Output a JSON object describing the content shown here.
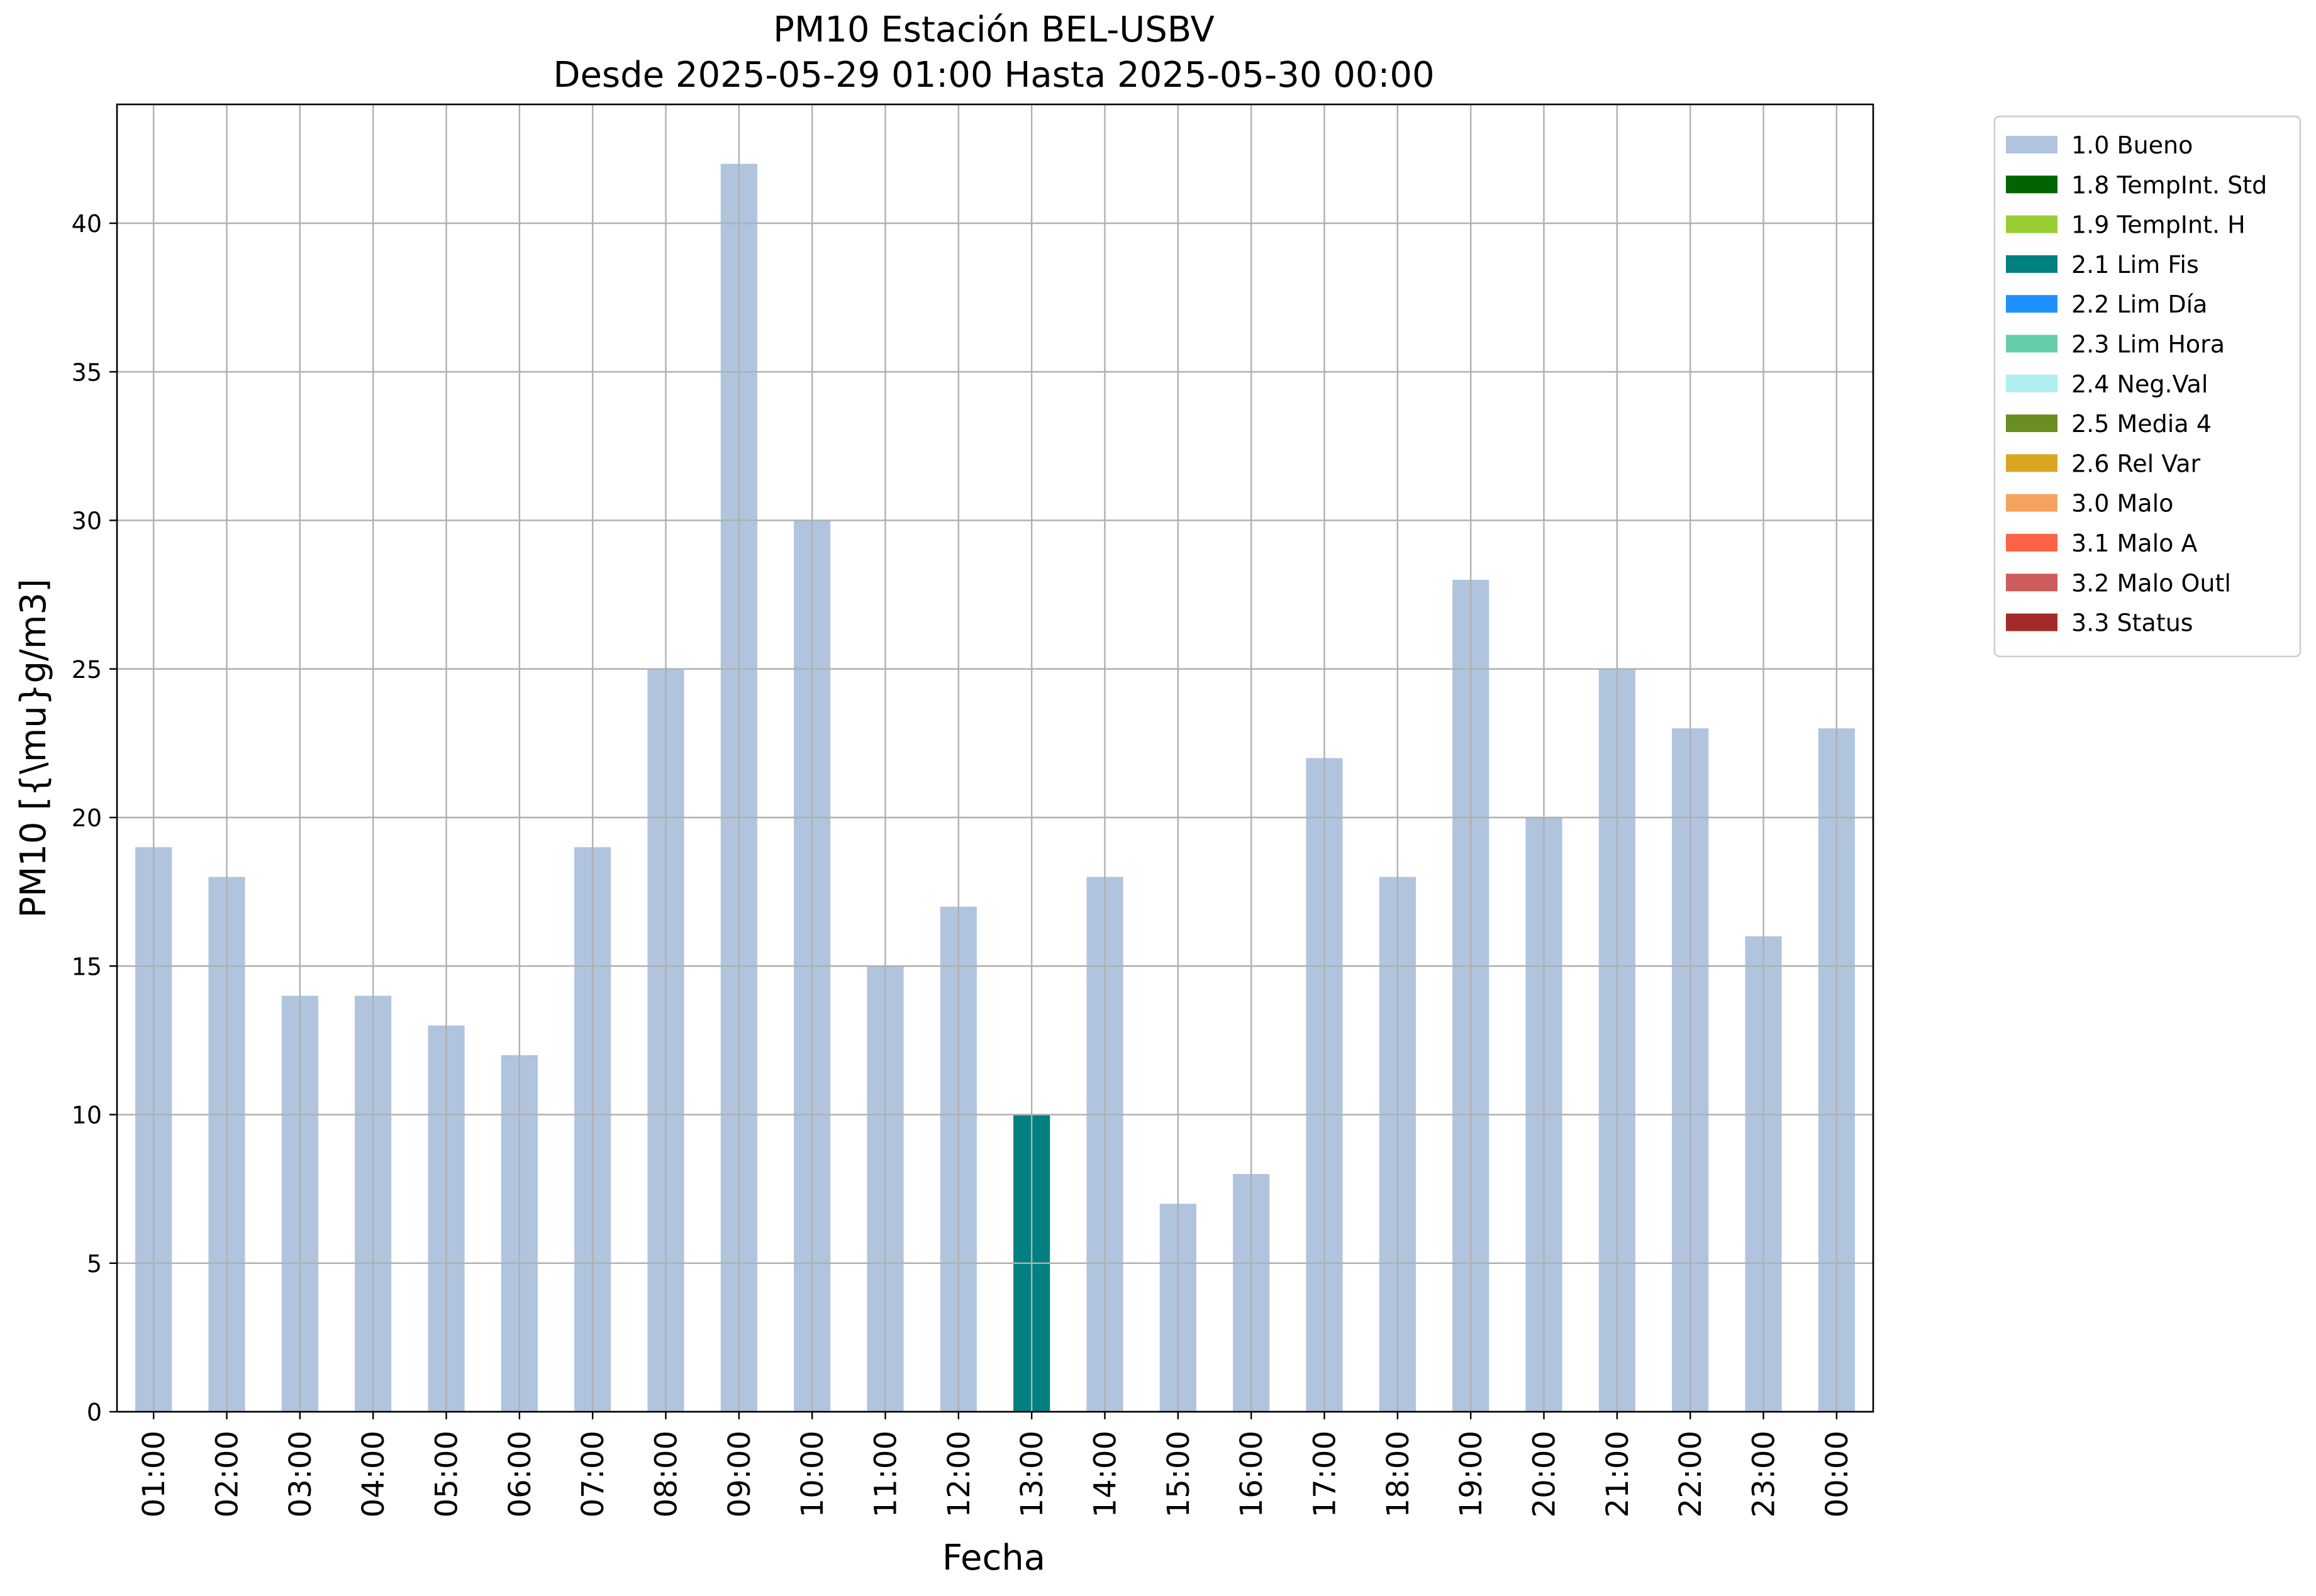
{
  "chart_data": {
    "type": "bar",
    "title": "PM10 Estación BEL-USBV",
    "subtitle": "Desde 2025-05-29 01:00 Hasta 2025-05-30 00:00",
    "xlabel": "Fecha",
    "ylabel": "PM10 [{\\mu}g/m3]",
    "ylim": [
      0,
      44
    ],
    "yticks": [
      0,
      5,
      10,
      15,
      20,
      25,
      30,
      35,
      40
    ],
    "grid": true,
    "legend_position": "outside-right",
    "categories": [
      "01:00",
      "02:00",
      "03:00",
      "04:00",
      "05:00",
      "06:00",
      "07:00",
      "08:00",
      "09:00",
      "10:00",
      "11:00",
      "12:00",
      "13:00",
      "14:00",
      "15:00",
      "16:00",
      "17:00",
      "18:00",
      "19:00",
      "20:00",
      "21:00",
      "22:00",
      "23:00",
      "00:00"
    ],
    "values": [
      19,
      18,
      14,
      14,
      13,
      12,
      19,
      25,
      42,
      30,
      15,
      17,
      10,
      18,
      7,
      8,
      22,
      18,
      28,
      20,
      25,
      23,
      16,
      23
    ],
    "flags": [
      "1.0 Bueno",
      "1.0 Bueno",
      "1.0 Bueno",
      "1.0 Bueno",
      "1.0 Bueno",
      "1.0 Bueno",
      "1.0 Bueno",
      "1.0 Bueno",
      "1.0 Bueno",
      "1.0 Bueno",
      "1.0 Bueno",
      "1.0 Bueno",
      "2.1 Lim Fis",
      "1.0 Bueno",
      "1.0 Bueno",
      "1.0 Bueno",
      "1.0 Bueno",
      "1.0 Bueno",
      "1.0 Bueno",
      "1.0 Bueno",
      "1.0 Bueno",
      "1.0 Bueno",
      "1.0 Bueno",
      "1.0 Bueno"
    ],
    "legend": [
      {
        "name": "1.0 Bueno",
        "color": "#b0c4de"
      },
      {
        "name": "1.8 TempInt. Std",
        "color": "#006400"
      },
      {
        "name": "1.9 TempInt. H",
        "color": "#9acd32"
      },
      {
        "name": "2.1 Lim Fis",
        "color": "#008080"
      },
      {
        "name": "2.2 Lim Día",
        "color": "#1e90ff"
      },
      {
        "name": "2.3 Lim Hora",
        "color": "#66cdaa"
      },
      {
        "name": "2.4 Neg.Val",
        "color": "#afeeee"
      },
      {
        "name": "2.5 Media 4",
        "color": "#6b8e23"
      },
      {
        "name": "2.6 Rel Var",
        "color": "#daa520"
      },
      {
        "name": "3.0 Malo",
        "color": "#f4a460"
      },
      {
        "name": "3.1 Malo A",
        "color": "#ff6347"
      },
      {
        "name": "3.2 Malo Outl",
        "color": "#cd5c5c"
      },
      {
        "name": "3.3 Status",
        "color": "#a52a2a"
      }
    ]
  }
}
